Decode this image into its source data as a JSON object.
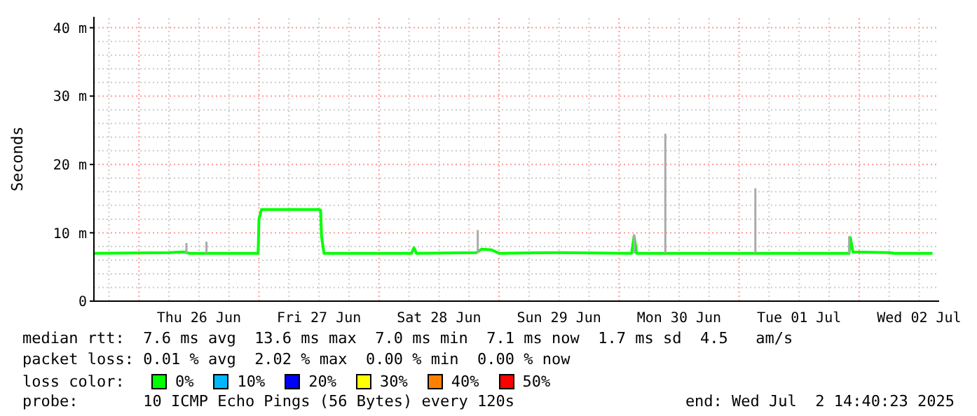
{
  "chart_data": {
    "type": "line",
    "ylabel": "Seconds",
    "xlim": [
      "2025-06-25T15:00",
      "2025-07-02T16:00"
    ],
    "ylim": [
      0,
      41.6
    ],
    "xticks": [
      {
        "value": "2025-06-26T12:00",
        "label": "Thu 26 Jun"
      },
      {
        "value": "2025-06-27T12:00",
        "label": "Fri 27 Jun"
      },
      {
        "value": "2025-06-28T12:00",
        "label": "Sat 28 Jun"
      },
      {
        "value": "2025-06-29T12:00",
        "label": "Sun 29 Jun"
      },
      {
        "value": "2025-06-30T12:00",
        "label": "Mon 30 Jun"
      },
      {
        "value": "2025-07-01T12:00",
        "label": "Tue 01 Jul"
      },
      {
        "value": "2025-07-02T12:00",
        "label": "Wed 02 Jul"
      }
    ],
    "yticks": [
      0,
      {
        "value": 10,
        "label": "10 m"
      },
      {
        "value": 20,
        "label": "20 m"
      },
      {
        "value": 30,
        "label": "30 m"
      },
      {
        "value": 40,
        "label": "40 m"
      }
    ],
    "grid": true,
    "legend_title": "loss color:",
    "marker": "none",
    "line_style": "solid",
    "series": [
      {
        "type": "bar",
        "color": "#aaaaaa",
        "base": [
          7,
          7,
          7,
          7,
          7,
          7,
          7
        ],
        "x": [
          "2025-06-26T09:30",
          "2025-06-26T13:30",
          "2025-06-28T19:45",
          "2025-06-30T03:00",
          "2025-06-30T09:15",
          "2025-07-01T03:15",
          "2025-07-01T22:00"
        ],
        "values": [
          1.5,
          1.7,
          3.4,
          2.8,
          17.5,
          9.5,
          2.5
        ]
      },
      {
        "color": "#00ff00",
        "x": [
          "2025-06-25T15:00",
          "2025-06-26T06:00",
          "2025-06-26T09:00",
          "2025-06-26T10:00",
          "2025-06-26T23:50",
          "2025-06-27T00:00",
          "2025-06-27T00:30",
          "2025-06-27T12:00",
          "2025-06-27T12:20",
          "2025-06-27T12:30",
          "2025-06-27T13:00",
          "2025-06-28T06:30",
          "2025-06-28T07:00",
          "2025-06-28T07:30",
          "2025-06-28T19:30",
          "2025-06-28T20:30",
          "2025-06-28T22:30",
          "2025-06-29T00:00",
          "2025-06-29T12:00",
          "2025-06-30T02:30",
          "2025-06-30T03:00",
          "2025-06-30T03:30",
          "2025-07-01T22:00",
          "2025-07-01T22:15",
          "2025-07-01T22:45",
          "2025-07-02T06:00",
          "2025-07-02T07:00",
          "2025-07-02T14:40"
        ],
        "values": [
          7.0,
          7.1,
          7.2,
          7.0,
          7.0,
          12.0,
          13.4,
          13.4,
          13.3,
          9.5,
          7.0,
          7.0,
          7.8,
          7.0,
          7.1,
          7.6,
          7.5,
          7.0,
          7.1,
          7.0,
          9.5,
          7.0,
          7.0,
          9.3,
          7.2,
          7.1,
          7.0,
          7.0
        ]
      }
    ],
    "annotations": [
      "median rtt:  7.6 ms avg  13.6 ms max  7.0 ms min  7.1 ms now  1.7 ms sd  4.5   am/s",
      "packet loss: 0.01 % avg  2.02 % max  0.00 % min  0.00 % now",
      "0%",
      "10%",
      "20%",
      "30%",
      "40%",
      "50%",
      "probe:       10 ICMP Echo Pings (56 Bytes) every 120s",
      "end: Wed Jul  2 14:40:23 2025"
    ]
  }
}
